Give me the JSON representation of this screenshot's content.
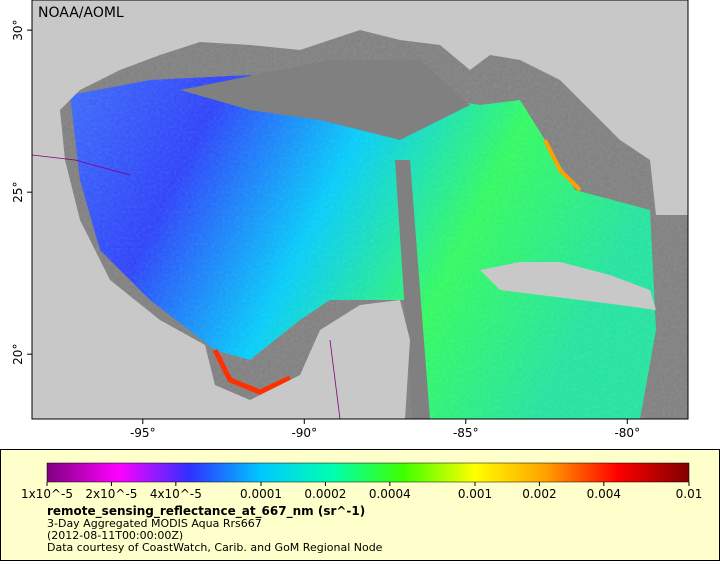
{
  "map": {
    "credit": "NOAA/AOML",
    "lonlim": [
      -98.43,
      -78.12
    ],
    "latlim": [
      18.0,
      30.93
    ],
    "lonticks": [
      {
        "value": -95,
        "label": "-95°"
      },
      {
        "value": -90,
        "label": "-90°"
      },
      {
        "value": -85,
        "label": "-85°"
      },
      {
        "value": -80,
        "label": "-80°"
      }
    ],
    "latticks": [
      {
        "value": 20,
        "label": "20°"
      },
      {
        "value": 25,
        "label": "25°"
      },
      {
        "value": 30,
        "label": "30°"
      }
    ]
  },
  "legend": {
    "log_scale": true,
    "range": [
      1e-05,
      0.01
    ],
    "colormap": [
      "#7f007f",
      "#ff00ff",
      "#3030ff",
      "#00c8ff",
      "#00ffb0",
      "#40ff00",
      "#ffff00",
      "#ffa000",
      "#ff0000",
      "#800000"
    ],
    "ticks": [
      {
        "value": 1e-05,
        "label": "1x10^-5"
      },
      {
        "value": 2e-05,
        "label": "2x10^-5"
      },
      {
        "value": 4e-05,
        "label": "4x10^-5"
      },
      {
        "value": 0.0001,
        "label": "0.0001"
      },
      {
        "value": 0.0002,
        "label": "0.0002"
      },
      {
        "value": 0.0004,
        "label": "0.0004"
      },
      {
        "value": 0.001,
        "label": "0.001"
      },
      {
        "value": 0.002,
        "label": "0.002"
      },
      {
        "value": 0.004,
        "label": "0.004"
      },
      {
        "value": 0.01,
        "label": "0.01"
      }
    ],
    "variable": "remote_sensing_reflectance_at_667_nm (sr^-1)",
    "lines": [
      "3-Day Aggregated MODIS Aqua Rrs667",
      "(2012-08-11T00:00:00Z)",
      "Data courtesy of CoastWatch, Carib. and GoM Regional Node"
    ]
  }
}
